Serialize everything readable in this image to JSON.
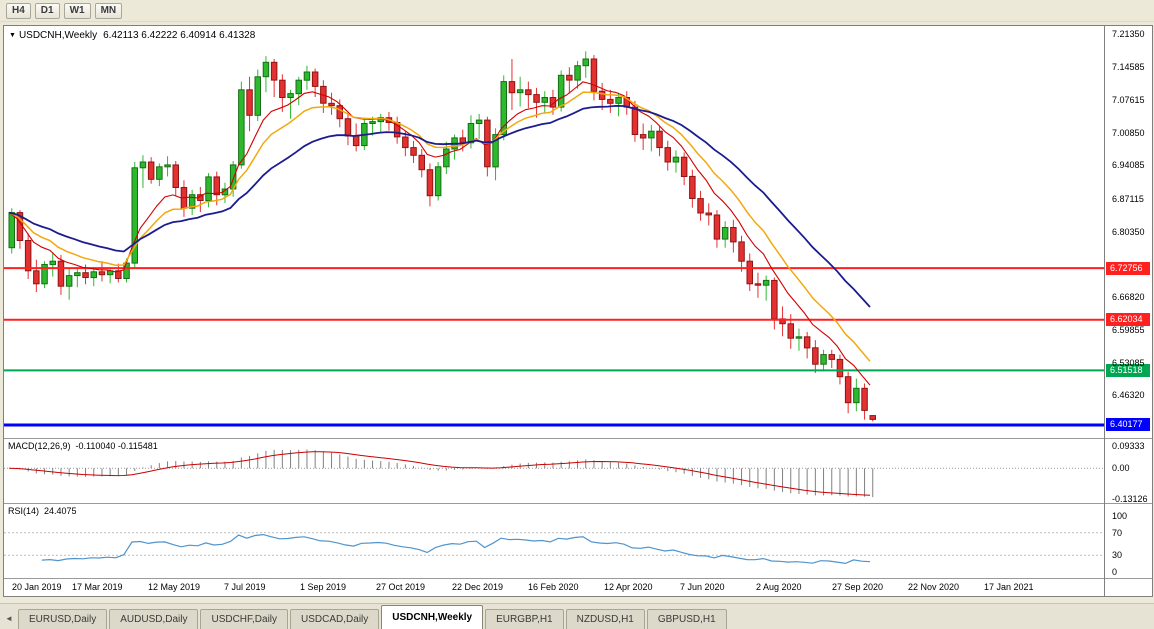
{
  "toolbar": {
    "timeframes": [
      "H4",
      "D1",
      "W1",
      "MN"
    ]
  },
  "chart": {
    "title": {
      "symbol": "USDCNH,Weekly",
      "ohlc": "6.42113 6.42222 6.40914 6.41328"
    },
    "price_max": 7.2305,
    "price_min": 6.3747,
    "y_axis_labels": [
      {
        "text": "7.21350",
        "value": 7.2135
      },
      {
        "text": "7.14585",
        "value": 7.14585
      },
      {
        "text": "7.07615",
        "value": 7.07615
      },
      {
        "text": "7.00850",
        "value": 7.0085
      },
      {
        "text": "6.94085",
        "value": 6.94085
      },
      {
        "text": "6.87115",
        "value": 6.87115
      },
      {
        "text": "6.80350",
        "value": 6.8035
      },
      {
        "text": "6.66820",
        "value": 6.6682
      },
      {
        "text": "6.59855",
        "value": 6.59855
      },
      {
        "text": "6.53085",
        "value": 6.53085
      },
      {
        "text": "6.46320",
        "value": 6.4632
      }
    ],
    "hlines": [
      {
        "label": "6.72756",
        "value": 6.72756,
        "color": "#ff2020",
        "width": 2
      },
      {
        "label": "6.62034",
        "value": 6.62034,
        "color": "#ff2020",
        "width": 2
      },
      {
        "label": "6.51518",
        "value": 6.51518,
        "color": "#00a651",
        "width": 2
      },
      {
        "label": "6.40177",
        "value": 6.40177,
        "color": "#0000ff",
        "width": 3
      }
    ],
    "colors": {
      "bull": "#2eb82e",
      "bull_border": "#156e15",
      "bear": "#e33030",
      "bear_border": "#8f1414",
      "ma_fast": "#d10000",
      "ma_mid": "#f2a80d",
      "ma_slow": "#1c1c8f"
    },
    "candles": [
      [
        6.77,
        6.852,
        6.758,
        6.843
      ],
      [
        6.843,
        6.848,
        6.768,
        6.785
      ],
      [
        6.785,
        6.8,
        6.705,
        6.722
      ],
      [
        6.722,
        6.745,
        6.678,
        6.695
      ],
      [
        6.695,
        6.742,
        6.686,
        6.735
      ],
      [
        6.735,
        6.76,
        6.71,
        6.742
      ],
      [
        6.742,
        6.755,
        6.672,
        6.69
      ],
      [
        6.69,
        6.726,
        6.662,
        6.712
      ],
      [
        6.712,
        6.73,
        6.688,
        6.718
      ],
      [
        6.718,
        6.735,
        6.694,
        6.708
      ],
      [
        6.708,
        6.728,
        6.69,
        6.72
      ],
      [
        6.72,
        6.742,
        6.7,
        6.714
      ],
      [
        6.714,
        6.73,
        6.696,
        6.722
      ],
      [
        6.722,
        6.737,
        6.698,
        6.706
      ],
      [
        6.706,
        6.748,
        6.698,
        6.738
      ],
      [
        6.738,
        6.948,
        6.73,
        6.936
      ],
      [
        6.936,
        6.962,
        6.894,
        6.948
      ],
      [
        6.948,
        6.958,
        6.903,
        6.912
      ],
      [
        6.912,
        6.945,
        6.898,
        6.938
      ],
      [
        6.938,
        6.96,
        6.918,
        6.942
      ],
      [
        6.942,
        6.95,
        6.878,
        6.895
      ],
      [
        6.895,
        6.91,
        6.834,
        6.852
      ],
      [
        6.852,
        6.89,
        6.838,
        6.88
      ],
      [
        6.88,
        6.896,
        6.844,
        6.868
      ],
      [
        6.868,
        6.925,
        6.854,
        6.917
      ],
      [
        6.917,
        6.928,
        6.858,
        6.88
      ],
      [
        6.88,
        6.905,
        6.863,
        6.892
      ],
      [
        6.892,
        6.95,
        6.876,
        6.942
      ],
      [
        6.942,
        7.115,
        6.934,
        7.098
      ],
      [
        7.098,
        7.125,
        7.012,
        7.045
      ],
      [
        7.045,
        7.14,
        7.033,
        7.125
      ],
      [
        7.125,
        7.168,
        7.093,
        7.155
      ],
      [
        7.155,
        7.162,
        7.083,
        7.118
      ],
      [
        7.118,
        7.13,
        7.052,
        7.082
      ],
      [
        7.082,
        7.098,
        7.038,
        7.09
      ],
      [
        7.09,
        7.125,
        7.066,
        7.118
      ],
      [
        7.118,
        7.148,
        7.098,
        7.135
      ],
      [
        7.135,
        7.142,
        7.083,
        7.105
      ],
      [
        7.105,
        7.118,
        7.05,
        7.07
      ],
      [
        7.07,
        7.092,
        7.046,
        7.065
      ],
      [
        7.065,
        7.078,
        7.02,
        7.038
      ],
      [
        7.038,
        7.05,
        6.983,
        7.002
      ],
      [
        7.002,
        7.028,
        6.97,
        6.982
      ],
      [
        6.982,
        7.04,
        6.973,
        7.028
      ],
      [
        7.028,
        7.042,
        7.003,
        7.032
      ],
      [
        7.032,
        7.048,
        7.01,
        7.04
      ],
      [
        7.04,
        7.052,
        7.013,
        7.03
      ],
      [
        7.03,
        7.042,
        6.986,
        7.0
      ],
      [
        7.0,
        7.012,
        6.96,
        6.978
      ],
      [
        6.978,
        6.992,
        6.946,
        6.962
      ],
      [
        6.962,
        6.975,
        6.916,
        6.932
      ],
      [
        6.932,
        6.945,
        6.856,
        6.878
      ],
      [
        6.878,
        6.948,
        6.868,
        6.938
      ],
      [
        6.938,
        6.99,
        6.923,
        6.975
      ],
      [
        6.975,
        7.005,
        6.953,
        6.998
      ],
      [
        6.998,
        7.015,
        6.97,
        6.988
      ],
      [
        6.988,
        7.045,
        6.976,
        7.028
      ],
      [
        7.028,
        7.048,
        6.996,
        7.035
      ],
      [
        7.035,
        7.042,
        6.918,
        6.938
      ],
      [
        6.938,
        7.018,
        6.91,
        7.005
      ],
      [
        7.005,
        7.128,
        6.993,
        7.115
      ],
      [
        7.115,
        7.162,
        7.056,
        7.092
      ],
      [
        7.092,
        7.125,
        7.063,
        7.098
      ],
      [
        7.098,
        7.115,
        7.06,
        7.088
      ],
      [
        7.088,
        7.102,
        7.04,
        7.072
      ],
      [
        7.072,
        7.095,
        7.05,
        7.082
      ],
      [
        7.082,
        7.098,
        7.046,
        7.062
      ],
      [
        7.062,
        7.138,
        7.053,
        7.128
      ],
      [
        7.128,
        7.145,
        7.09,
        7.118
      ],
      [
        7.118,
        7.158,
        7.1,
        7.148
      ],
      [
        7.148,
        7.178,
        7.123,
        7.162
      ],
      [
        7.162,
        7.17,
        7.076,
        7.095
      ],
      [
        7.095,
        7.112,
        7.056,
        7.078
      ],
      [
        7.078,
        7.098,
        7.05,
        7.07
      ],
      [
        7.07,
        7.092,
        7.043,
        7.082
      ],
      [
        7.082,
        7.095,
        7.046,
        7.062
      ],
      [
        7.062,
        7.075,
        6.99,
        7.005
      ],
      [
        7.005,
        7.028,
        6.973,
        6.998
      ],
      [
        6.998,
        7.025,
        6.97,
        7.012
      ],
      [
        7.012,
        7.022,
        6.96,
        6.978
      ],
      [
        6.978,
        6.992,
        6.93,
        6.948
      ],
      [
        6.948,
        6.972,
        6.926,
        6.958
      ],
      [
        6.958,
        6.968,
        6.9,
        6.918
      ],
      [
        6.918,
        6.932,
        6.853,
        6.872
      ],
      [
        6.872,
        6.888,
        6.826,
        6.842
      ],
      [
        6.842,
        6.862,
        6.816,
        6.838
      ],
      [
        6.838,
        6.848,
        6.77,
        6.788
      ],
      [
        6.788,
        6.825,
        6.77,
        6.812
      ],
      [
        6.812,
        6.828,
        6.76,
        6.782
      ],
      [
        6.782,
        6.795,
        6.72,
        6.742
      ],
      [
        6.742,
        6.758,
        6.68,
        6.695
      ],
      [
        6.695,
        6.718,
        6.666,
        6.692
      ],
      [
        6.692,
        6.712,
        6.66,
        6.702
      ],
      [
        6.702,
        6.708,
        6.6,
        6.622
      ],
      [
        6.622,
        6.648,
        6.586,
        6.612
      ],
      [
        6.612,
        6.632,
        6.56,
        6.582
      ],
      [
        6.582,
        6.602,
        6.556,
        6.585
      ],
      [
        6.585,
        6.595,
        6.54,
        6.562
      ],
      [
        6.562,
        6.578,
        6.51,
        6.528
      ],
      [
        6.528,
        6.558,
        6.513,
        6.548
      ],
      [
        6.548,
        6.558,
        6.52,
        6.538
      ],
      [
        6.538,
        6.548,
        6.486,
        6.502
      ],
      [
        6.502,
        6.512,
        6.426,
        6.448
      ],
      [
        6.448,
        6.498,
        6.43,
        6.478
      ],
      [
        6.478,
        6.488,
        6.413,
        6.432
      ],
      [
        6.42113,
        6.42222,
        6.40914,
        6.41328
      ]
    ]
  },
  "macd": {
    "name": "MACD(12,26,9)",
    "values": "-0.110040 -0.115481",
    "axis": [
      {
        "text": "0.09333",
        "value": 0.09333
      },
      {
        "text": "0.00",
        "value": 0
      },
      {
        "text": "-0.13126",
        "value": -0.13126
      }
    ],
    "scale_max": 0.125,
    "scale_min": -0.148,
    "histogram_color": "#808080",
    "signal_color": "#cc0000"
  },
  "rsi": {
    "name": "RSI(14)",
    "value": "24.4075",
    "axis": [
      {
        "text": "100",
        "value": 100
      },
      {
        "text": "70",
        "value": 70
      },
      {
        "text": "30",
        "value": 30
      },
      {
        "text": "0",
        "value": 0
      }
    ],
    "levels": [
      70,
      30
    ],
    "line_color": "#4f94cd"
  },
  "x_axis": {
    "labels": [
      "20 Jan 2019",
      "17 Mar 2019",
      "12 May 2019",
      "7 Jul 2019",
      "1 Sep 2019",
      "27 Oct 2019",
      "22 Dec 2019",
      "16 Feb 2020",
      "12 Apr 2020",
      "7 Jun 2020",
      "2 Aug 2020",
      "27 Sep 2020",
      "22 Nov 2020",
      "17 Jan 2021"
    ]
  },
  "tab_bar": {
    "scroll_left_icon": "◄"
  },
  "tabs": [
    {
      "label": "EURUSD,Daily",
      "active": false
    },
    {
      "label": "AUDUSD,Daily",
      "active": false
    },
    {
      "label": "USDCHF,Daily",
      "active": false
    },
    {
      "label": "USDCAD,Daily",
      "active": false
    },
    {
      "label": "USDCNH,Weekly",
      "active": true
    },
    {
      "label": "EURGBP,H1",
      "active": false
    },
    {
      "label": "NZDUSD,H1",
      "active": false
    },
    {
      "label": "GBPUSD,H1",
      "active": false
    }
  ]
}
